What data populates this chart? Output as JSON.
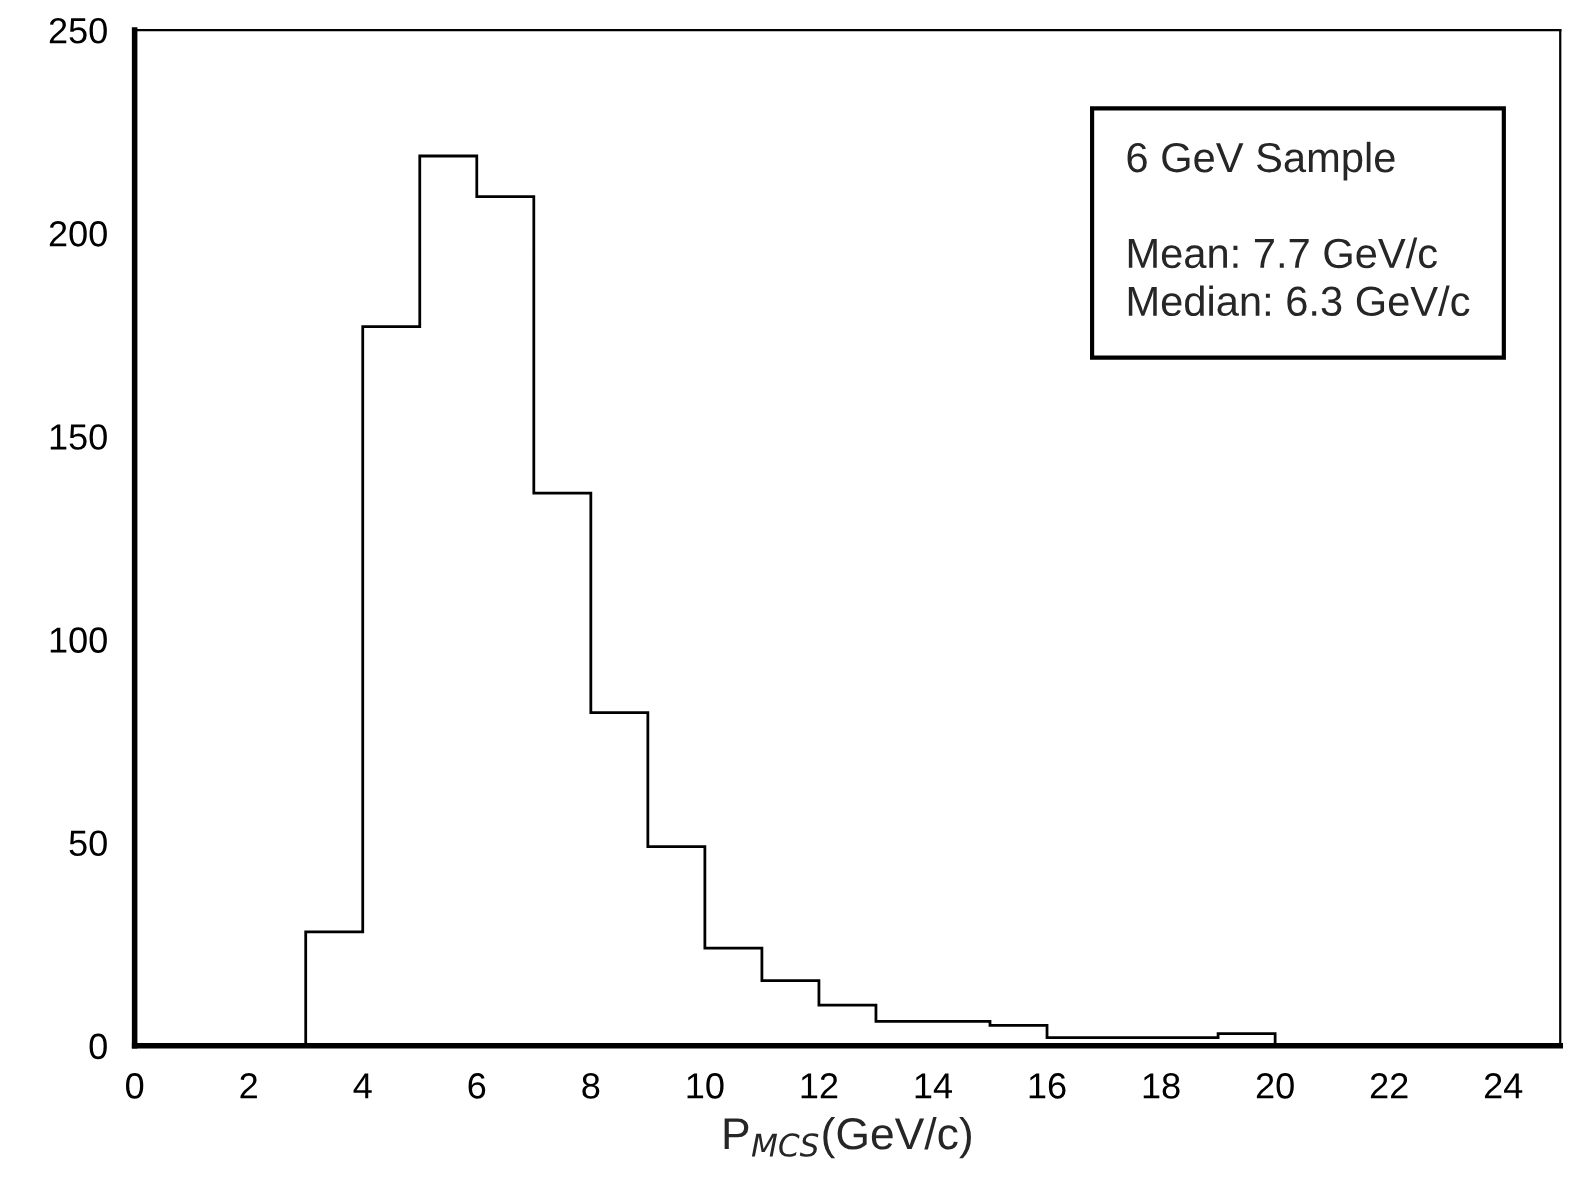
{
  "chart_data": {
    "type": "histogram",
    "xlabel": "P$_{MCS}$(GeV/c)",
    "annotations": [
      "6 GeV Sample",
      "Mean: 7.7 GeV/c",
      "Median: 6.3 GeV/c"
    ],
    "bins": [
      3,
      4,
      5,
      6,
      7,
      8,
      9,
      10,
      11,
      12,
      13,
      14,
      15,
      16,
      17,
      18,
      19,
      20
    ],
    "values": [
      28,
      177,
      219,
      209,
      136,
      82,
      49,
      24,
      16,
      10,
      6,
      6,
      5,
      2,
      2,
      2,
      3
    ],
    "color": "#000000",
    "xlim": [
      0,
      25
    ],
    "xticks": [
      0,
      2,
      4,
      6,
      8,
      10,
      12,
      14,
      16,
      18,
      20,
      22,
      24
    ],
    "ylim": [
      0,
      250
    ],
    "yticks": [
      0,
      50,
      100,
      150,
      200,
      250
    ],
    "grid": false,
    "legend": false
  }
}
